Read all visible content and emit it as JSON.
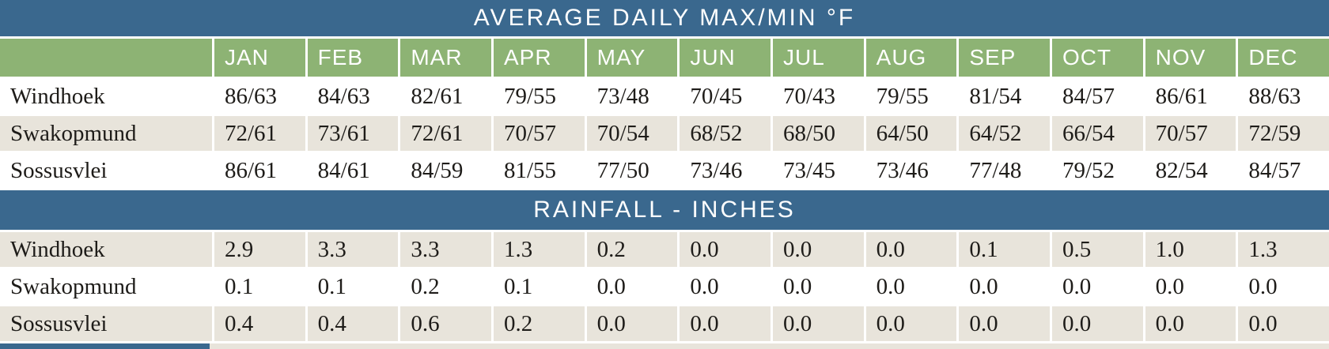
{
  "colors": {
    "header_blue": "#3a688e",
    "month_green": "#8db374",
    "row_beige": "#e8e4db",
    "row_white": "#ffffff",
    "text_ink": "#1e1c19",
    "header_text": "#ffffff"
  },
  "chart_data": [
    {
      "type": "table",
      "title": "AVERAGE DAILY MAX/MIN °F",
      "columns": [
        "JAN",
        "FEB",
        "MAR",
        "APR",
        "MAY",
        "JUN",
        "JUL",
        "AUG",
        "SEP",
        "OCT",
        "NOV",
        "DEC"
      ],
      "rows": [
        {
          "label": "Windhoek",
          "values": [
            "86/63",
            "84/63",
            "82/61",
            "79/55",
            "73/48",
            "70/45",
            "70/43",
            "79/55",
            "81/54",
            "84/57",
            "86/61",
            "88/63"
          ]
        },
        {
          "label": "Swakopmund",
          "values": [
            "72/61",
            "73/61",
            "72/61",
            "70/57",
            "70/54",
            "68/52",
            "68/50",
            "64/50",
            "64/52",
            "66/54",
            "70/57",
            "72/59"
          ]
        },
        {
          "label": "Sossusvlei",
          "values": [
            "86/61",
            "84/61",
            "84/59",
            "81/55",
            "77/50",
            "73/46",
            "73/45",
            "73/46",
            "77/48",
            "79/52",
            "82/54",
            "84/57"
          ]
        }
      ]
    },
    {
      "type": "table",
      "title": "RAINFALL - INCHES",
      "columns": [
        "JAN",
        "FEB",
        "MAR",
        "APR",
        "MAY",
        "JUN",
        "JUL",
        "AUG",
        "SEP",
        "OCT",
        "NOV",
        "DEC"
      ],
      "rows": [
        {
          "label": "Windhoek",
          "values": [
            "2.9",
            "3.3",
            "3.3",
            "1.3",
            "0.2",
            "0.0",
            "0.0",
            "0.0",
            "0.1",
            "0.5",
            "1.0",
            "1.3"
          ]
        },
        {
          "label": "Swakopmund",
          "values": [
            "0.1",
            "0.1",
            "0.2",
            "0.1",
            "0.0",
            "0.0",
            "0.0",
            "0.0",
            "0.0",
            "0.0",
            "0.0",
            "0.0"
          ]
        },
        {
          "label": "Sossusvlei",
          "values": [
            "0.4",
            "0.4",
            "0.6",
            "0.2",
            "0.0",
            "0.0",
            "0.0",
            "0.0",
            "0.0",
            "0.0",
            "0.0",
            "0.0"
          ]
        }
      ]
    }
  ]
}
